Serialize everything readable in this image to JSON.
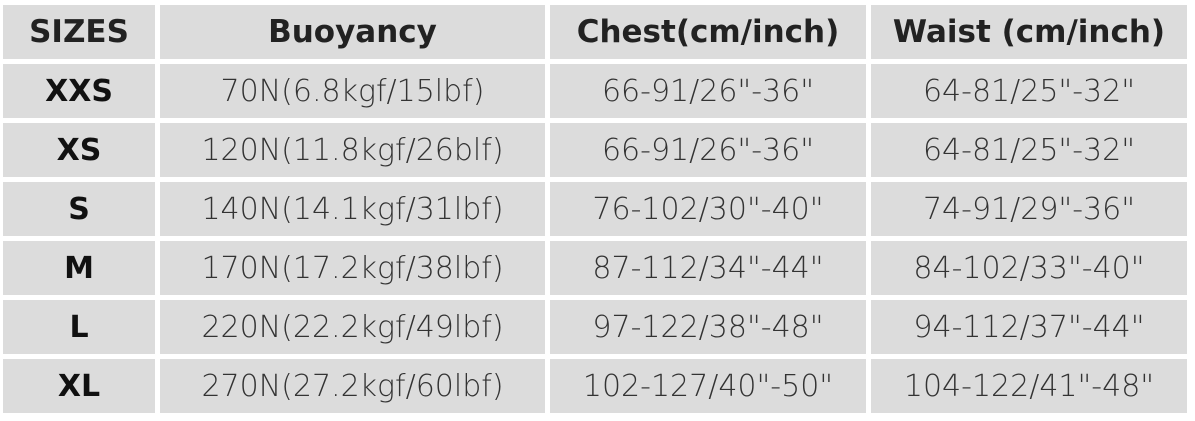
{
  "table": {
    "header": [
      "SIZES",
      "Buoyancy",
      "Chest(cm/inch)",
      "Waist (cm/inch)"
    ],
    "rows": [
      [
        "XXS",
        "70N(6.8kgf/15lbf)",
        "66-91/26\"-36\"",
        "64-81/25\"-32\""
      ],
      [
        "XS",
        "120N(11.8kgf/26blf)",
        "66-91/26\"-36\"",
        "64-81/25\"-32\""
      ],
      [
        "S",
        "140N(14.1kgf/31lbf)",
        "76-102/30\"-40\"",
        "74-91/29\"-36\""
      ],
      [
        "M",
        "170N(17.2kgf/38lbf)",
        "87-112/34\"-44\"",
        "84-102/33\"-40\""
      ],
      [
        "L",
        "220N(22.2kgf/49lbf)",
        "97-122/38\"-48\"",
        "94-112/37\"-44\""
      ],
      [
        "XL",
        "270N(27.2kgf/60lbf)",
        "102-127/40\"-50\"",
        "104-122/41\"-48\""
      ]
    ]
  }
}
